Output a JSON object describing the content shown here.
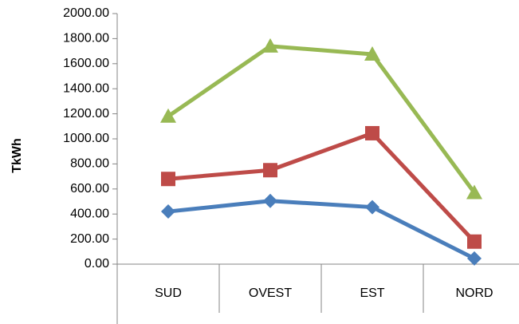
{
  "chart_data": {
    "type": "line",
    "y_label": "TkWh",
    "categories": [
      "SUD",
      "OVEST",
      "EST",
      "NORD"
    ],
    "series": [
      {
        "color": "#4a7ebb",
        "marker": "diamond",
        "values": [
          420,
          505,
          455,
          45
        ]
      },
      {
        "color": "#be4b48",
        "marker": "square",
        "values": [
          680,
          750,
          1045,
          180
        ]
      },
      {
        "color": "#98b954",
        "marker": "triangle",
        "values": [
          1180,
          1740,
          1675,
          570
        ]
      }
    ],
    "ylim": [
      0,
      2000
    ],
    "yticks": [
      {
        "value": 0,
        "label": "0.00"
      },
      {
        "value": 200,
        "label": "200.00"
      },
      {
        "value": 400,
        "label": "400.00"
      },
      {
        "value": 600,
        "label": "600.00"
      },
      {
        "value": 800,
        "label": "800.00"
      },
      {
        "value": 1000,
        "label": "1000.00"
      },
      {
        "value": 1200,
        "label": "1200.00"
      },
      {
        "value": 1400,
        "label": "1400.00"
      },
      {
        "value": 1600,
        "label": "1600.00"
      },
      {
        "value": 1800,
        "label": "1800.00"
      },
      {
        "value": 2000,
        "label": "2000.00"
      }
    ],
    "grid": false
  }
}
